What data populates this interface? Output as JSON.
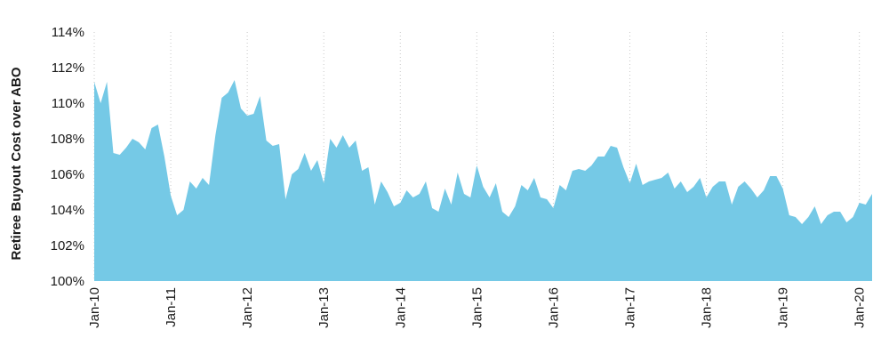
{
  "chart_data": {
    "type": "area",
    "title": "",
    "xlabel": "",
    "ylabel": "Retiree Buyout Cost over ABO",
    "ylim": [
      100,
      114
    ],
    "x_range": [
      "2010-01",
      "2020-03"
    ],
    "grid": "vertical dotted gridlines at each January",
    "legend": "none",
    "color": "#75c9e6",
    "y_ticks": [
      "100%",
      "102%",
      "104%",
      "106%",
      "108%",
      "110%",
      "112%",
      "114%"
    ],
    "y_tick_values": [
      100,
      102,
      104,
      106,
      108,
      110,
      112,
      114
    ],
    "x_ticks": [
      "Jan-10",
      "Jan-11",
      "Jan-12",
      "Jan-13",
      "Jan-14",
      "Jan-15",
      "Jan-16",
      "Jan-17",
      "Jan-18",
      "Jan-19",
      "Jan-20"
    ],
    "x_tick_dates": [
      "2010-01",
      "2011-01",
      "2012-01",
      "2013-01",
      "2014-01",
      "2015-01",
      "2016-01",
      "2017-01",
      "2018-01",
      "2019-01",
      "2020-01"
    ],
    "series": [
      {
        "x": [
          "2010-01",
          "2010-02",
          "2010-03",
          "2010-04",
          "2010-05",
          "2010-06",
          "2010-07",
          "2010-08",
          "2010-09",
          "2010-10",
          "2010-11",
          "2010-12",
          "2011-01",
          "2011-02",
          "2011-03",
          "2011-04",
          "2011-05",
          "2011-06",
          "2011-07",
          "2011-08",
          "2011-09",
          "2011-10",
          "2011-11",
          "2011-12",
          "2012-01",
          "2012-02",
          "2012-03",
          "2012-04",
          "2012-05",
          "2012-06",
          "2012-07",
          "2012-08",
          "2012-09",
          "2012-10",
          "2012-11",
          "2012-12",
          "2013-01",
          "2013-02",
          "2013-03",
          "2013-04",
          "2013-05",
          "2013-06",
          "2013-07",
          "2013-08",
          "2013-09",
          "2013-10",
          "2013-11",
          "2013-12",
          "2014-01",
          "2014-02",
          "2014-03",
          "2014-04",
          "2014-05",
          "2014-06",
          "2014-07",
          "2014-08",
          "2014-09",
          "2014-10",
          "2014-11",
          "2014-12",
          "2015-01",
          "2015-02",
          "2015-03",
          "2015-04",
          "2015-05",
          "2015-06",
          "2015-07",
          "2015-08",
          "2015-09",
          "2015-10",
          "2015-11",
          "2015-12",
          "2016-01",
          "2016-02",
          "2016-03",
          "2016-04",
          "2016-05",
          "2016-06",
          "2016-07",
          "2016-08",
          "2016-09",
          "2016-10",
          "2016-11",
          "2016-12",
          "2017-01",
          "2017-02",
          "2017-03",
          "2017-04",
          "2017-05",
          "2017-06",
          "2017-07",
          "2017-08",
          "2017-09",
          "2017-10",
          "2017-11",
          "2017-12",
          "2018-01",
          "2018-02",
          "2018-03",
          "2018-04",
          "2018-05",
          "2018-06",
          "2018-07",
          "2018-08",
          "2018-09",
          "2018-10",
          "2018-11",
          "2018-12",
          "2019-01",
          "2019-02",
          "2019-03",
          "2019-04",
          "2019-05",
          "2019-06",
          "2019-07",
          "2019-08",
          "2019-09",
          "2019-10",
          "2019-11",
          "2019-12",
          "2020-01",
          "2020-02",
          "2020-03"
        ],
        "values": [
          111.2,
          110.0,
          111.2,
          107.2,
          107.1,
          107.5,
          108.0,
          107.8,
          107.4,
          108.6,
          108.8,
          107.0,
          104.8,
          103.7,
          104.0,
          105.6,
          105.2,
          105.8,
          105.4,
          108.2,
          110.3,
          110.6,
          111.3,
          109.7,
          109.3,
          109.4,
          110.4,
          107.9,
          107.6,
          107.7,
          104.6,
          106.0,
          106.3,
          107.2,
          106.2,
          106.8,
          105.5,
          108.0,
          107.5,
          108.2,
          107.5,
          107.9,
          106.2,
          106.4,
          104.3,
          105.6,
          105.0,
          104.2,
          104.4,
          105.1,
          104.7,
          104.9,
          105.6,
          104.1,
          103.9,
          105.2,
          104.3,
          106.1,
          104.9,
          104.7,
          106.5,
          105.3,
          104.7,
          105.5,
          103.9,
          103.6,
          104.2,
          105.4,
          105.1,
          105.8,
          104.7,
          104.6,
          104.1,
          105.4,
          105.1,
          106.2,
          106.3,
          106.2,
          106.5,
          107.0,
          107.0,
          107.6,
          107.5,
          106.4,
          105.5,
          106.6,
          105.4,
          105.6,
          105.7,
          105.8,
          106.1,
          105.2,
          105.6,
          105.0,
          105.3,
          105.8,
          104.7,
          105.3,
          105.6,
          105.6,
          104.3,
          105.3,
          105.6,
          105.2,
          104.7,
          105.1,
          105.9,
          105.9,
          105.2,
          103.7,
          103.6,
          103.2,
          103.6,
          104.2,
          103.2,
          103.7,
          103.9,
          103.9,
          103.3,
          103.6,
          104.4,
          104.3,
          104.9
        ]
      }
    ]
  }
}
